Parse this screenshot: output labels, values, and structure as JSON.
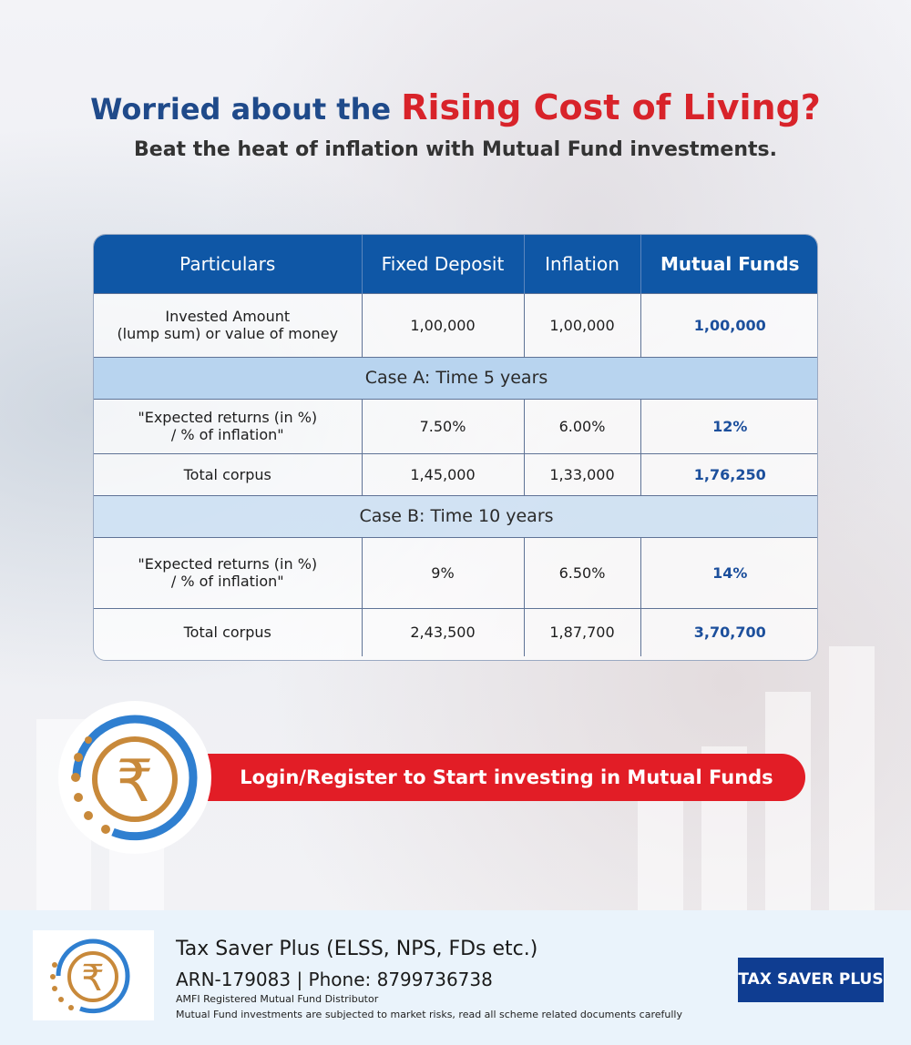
{
  "header": {
    "headline_prefix": "Worried about the",
    "headline_highlight": "Rising Cost of Living?",
    "subheadline": "Beat the heat of inflation with Mutual Fund investments."
  },
  "table": {
    "columns": [
      "Particulars",
      "Fixed Deposit",
      "Inflation",
      "Mutual Funds"
    ],
    "invested": {
      "label_line1": "Invested Amount",
      "label_line2": "(lump sum) or value of money",
      "values": [
        "1,00,000",
        "1,00,000",
        "1,00,000"
      ]
    },
    "case_a": {
      "title": "Case A: Time 5 years",
      "returns": {
        "label_line1": "\"Expected returns (in %)",
        "label_line2": "/ % of inflation\"",
        "values": [
          "7.50%",
          "6.00%",
          "12%"
        ]
      },
      "corpus": {
        "label": "Total corpus",
        "values": [
          "1,45,000",
          "1,33,000",
          "1,76,250"
        ]
      }
    },
    "case_b": {
      "title": "Case B: Time 10 years",
      "returns": {
        "label_line1": "\"Expected returns (in %)",
        "label_line2": "/ % of inflation\"",
        "values": [
          "9%",
          "6.50%",
          "14%"
        ]
      },
      "corpus": {
        "label": "Total corpus",
        "values": [
          "2,43,500",
          "1,87,700",
          "3,70,700"
        ]
      }
    }
  },
  "cta": {
    "label": "Login/Register to Start investing in Mutual Funds",
    "logo_icon": "rupee-coin-icon"
  },
  "footer": {
    "title": "Tax Saver Plus (ELSS, NPS, FDs etc.)",
    "arn_line": "ARN-179083 | Phone: 8799736738",
    "amfi": "AMFI Registered Mutual Fund Distributor",
    "disclaimer": "Mutual Fund investments are subjected to market risks, read all scheme related documents carefully",
    "brand": "TAX SAVER PLUS"
  },
  "colors": {
    "brand_blue": "#0f57a6",
    "headline_blue": "#1f4a8a",
    "accent_red": "#e21d26",
    "case_band": "#b8d4ef",
    "logo_gold": "#c8893a"
  }
}
